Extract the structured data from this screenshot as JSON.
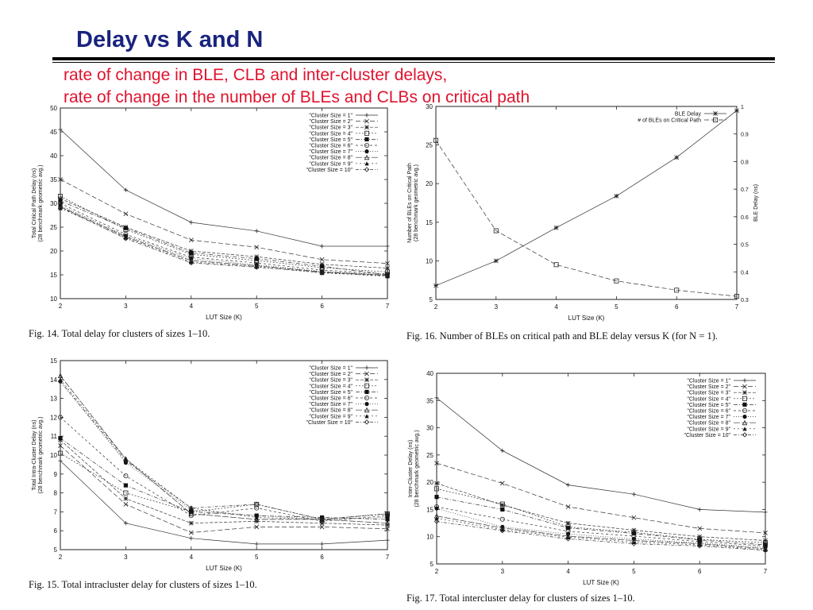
{
  "page": {
    "title": "Delay vs K and N",
    "subtitle_lines": [
      "rate of change in BLE, CLB and inter-cluster delays,",
      "rate of change in the number of BLEs and CLBs on critical path"
    ]
  },
  "chart_data": [
    {
      "id": "fig14",
      "type": "line",
      "caption": "Fig. 14.    Total delay for clusters of sizes 1–10.",
      "xlabel": "LUT Size (K)",
      "ylabel": "Total Critical Path Delay (ns)",
      "ylabel2": "(28 benchmark geometric avg.)",
      "xlim": [
        2,
        7
      ],
      "ylim": [
        10,
        50
      ],
      "xticks": [
        2,
        3,
        4,
        5,
        6,
        7
      ],
      "yticks": [
        10,
        15,
        20,
        25,
        30,
        35,
        40,
        45,
        50
      ],
      "legend_position": "top-right",
      "x": [
        2,
        3,
        4,
        5,
        6,
        7
      ],
      "series": [
        {
          "name": "\"Cluster Size = 1\"",
          "values": [
            45.5,
            32.8,
            26.0,
            24.2,
            21.0,
            21.0
          ]
        },
        {
          "name": "\"Cluster Size = 2\"",
          "values": [
            35.0,
            27.8,
            22.3,
            20.8,
            18.2,
            17.4
          ]
        },
        {
          "name": "\"Cluster Size = 3\"",
          "values": [
            31.0,
            25.0,
            20.0,
            18.8,
            17.2,
            16.4
          ]
        },
        {
          "name": "\"Cluster Size = 4\"",
          "values": [
            31.5,
            24.5,
            19.3,
            18.0,
            16.5,
            15.6
          ]
        },
        {
          "name": "\"Cluster Size = 5\"",
          "values": [
            30.5,
            24.8,
            19.6,
            18.4,
            16.8,
            15.0
          ]
        },
        {
          "name": "\"Cluster Size = 6\"",
          "values": [
            30.0,
            23.5,
            18.7,
            17.5,
            16.0,
            15.2
          ]
        },
        {
          "name": "\"Cluster Size = 7\"",
          "values": [
            29.6,
            23.2,
            18.4,
            17.1,
            15.7,
            15.0
          ]
        },
        {
          "name": "\"Cluster Size = 8\"",
          "values": [
            29.3,
            23.0,
            18.0,
            16.9,
            15.6,
            14.9
          ]
        },
        {
          "name": "\"Cluster Size = 9\"",
          "values": [
            29.0,
            22.8,
            17.7,
            16.7,
            15.4,
            14.7
          ]
        },
        {
          "name": "\"Cluster Size = 10\"",
          "values": [
            29.2,
            22.6,
            17.5,
            16.6,
            15.5,
            14.8
          ]
        }
      ]
    },
    {
      "id": "fig16",
      "type": "line",
      "caption": "Fig. 16.    Number of BLEs on critical path and BLE delay versus K (for N = 1).",
      "xlabel": "LUT Size (K)",
      "ylabel": "Number of BLEs on Critical Path",
      "ylabel2": "(28 benchmark geometric avg.)",
      "ylabel_right": "BLE Delay (ns)",
      "xlim": [
        2,
        7
      ],
      "ylim": [
        5,
        30
      ],
      "ylim_right": [
        0.3,
        1.0
      ],
      "xticks": [
        2,
        3,
        4,
        5,
        6,
        7
      ],
      "yticks": [
        5,
        10,
        15,
        20,
        25,
        30
      ],
      "yticks_right": [
        0.3,
        0.4,
        0.5,
        0.6,
        0.7,
        0.8,
        0.9,
        1.0
      ],
      "legend_position": "top-right",
      "x": [
        2,
        3,
        4,
        5,
        6,
        7
      ],
      "series": [
        {
          "name": "BLE Delay",
          "axis": "right",
          "values": [
            0.35,
            0.44,
            0.56,
            0.675,
            0.815,
            0.985
          ]
        },
        {
          "name": "# of BLEs on Critical Path",
          "axis": "left",
          "values": [
            25.6,
            13.9,
            9.5,
            7.4,
            6.2,
            5.4
          ]
        }
      ]
    },
    {
      "id": "fig15",
      "type": "line",
      "caption": "Fig. 15.    Total intracluster delay for clusters of sizes 1–10.",
      "xlabel": "LUT Size (K)",
      "ylabel": "Total Intra-Cluster Delay (ns)",
      "ylabel2": "(28 benchmark geometric avg.)",
      "xlim": [
        2,
        7
      ],
      "ylim": [
        5,
        15
      ],
      "xticks": [
        2,
        3,
        4,
        5,
        6,
        7
      ],
      "yticks": [
        5,
        6,
        7,
        8,
        9,
        10,
        11,
        12,
        13,
        14,
        15
      ],
      "legend_position": "top-right",
      "x": [
        2,
        3,
        4,
        5,
        6,
        7
      ],
      "series": [
        {
          "name": "\"Cluster Size = 1\"",
          "values": [
            9.7,
            6.4,
            5.6,
            5.3,
            5.3,
            5.5
          ]
        },
        {
          "name": "\"Cluster Size = 2\"",
          "values": [
            10.5,
            7.4,
            5.9,
            6.2,
            6.2,
            6.1
          ]
        },
        {
          "name": "\"Cluster Size = 3\"",
          "values": [
            10.8,
            7.7,
            6.4,
            6.5,
            6.4,
            6.3
          ]
        },
        {
          "name": "\"Cluster Size = 4\"",
          "values": [
            10.1,
            8.0,
            7.0,
            7.4,
            6.6,
            6.9
          ]
        },
        {
          "name": "\"Cluster Size = 5\"",
          "values": [
            10.9,
            8.4,
            7.0,
            6.8,
            6.7,
            6.6
          ]
        },
        {
          "name": "\"Cluster Size = 6\"",
          "values": [
            12.0,
            8.9,
            6.8,
            7.2,
            6.5,
            6.8
          ]
        },
        {
          "name": "\"Cluster Size = 7\"",
          "values": [
            13.9,
            9.6,
            7.1,
            6.8,
            6.6,
            6.7
          ]
        },
        {
          "name": "\"Cluster Size = 8\"",
          "values": [
            14.2,
            9.8,
            6.9,
            6.6,
            6.6,
            6.4
          ]
        },
        {
          "name": "\"Cluster Size = 9\"",
          "values": [
            14.0,
            9.8,
            7.2,
            6.7,
            6.6,
            6.9
          ]
        },
        {
          "name": "\"Cluster Size = 10\"",
          "values": [
            13.9,
            9.7,
            7.2,
            7.4,
            6.6,
            6.9
          ]
        }
      ]
    },
    {
      "id": "fig17",
      "type": "line",
      "caption": "Fig. 17.    Total intercluster delay for clusters of sizes 1–10.",
      "xlabel": "LUT Size (K)",
      "ylabel": "Inter-Cluster Delay (ns)",
      "ylabel2": "(28 benchmark geometric avg.)",
      "xlim": [
        2,
        7
      ],
      "ylim": [
        5,
        40
      ],
      "xticks": [
        2,
        3,
        4,
        5,
        6,
        7
      ],
      "yticks": [
        5,
        10,
        15,
        20,
        25,
        30,
        35,
        40
      ],
      "legend_position": "top-right",
      "x": [
        2,
        3,
        4,
        5,
        6,
        7
      ],
      "series": [
        {
          "name": "\"Cluster Size = 1\"",
          "values": [
            35.5,
            25.8,
            19.5,
            17.8,
            15.0,
            14.5
          ]
        },
        {
          "name": "\"Cluster Size = 2\"",
          "values": [
            23.5,
            19.8,
            15.5,
            13.5,
            11.5,
            10.7
          ]
        },
        {
          "name": "\"Cluster Size = 3\"",
          "values": [
            19.8,
            15.8,
            12.5,
            11.2,
            10.0,
            9.3
          ]
        },
        {
          "name": "\"Cluster Size = 4\"",
          "values": [
            18.8,
            16.0,
            11.8,
            10.8,
            9.5,
            8.9
          ]
        },
        {
          "name": "\"Cluster Size = 5\"",
          "values": [
            17.3,
            15.0,
            11.6,
            10.6,
            9.4,
            8.5
          ]
        },
        {
          "name": "\"Cluster Size = 6\"",
          "values": [
            15.5,
            13.2,
            11.0,
            10.1,
            9.1,
            8.3
          ]
        },
        {
          "name": "\"Cluster Size = 7\"",
          "values": [
            15.2,
            11.8,
            10.5,
            9.6,
            8.8,
            8.0
          ]
        },
        {
          "name": "\"Cluster Size = 8\"",
          "values": [
            13.8,
            11.6,
            10.1,
            9.3,
            8.7,
            7.8
          ]
        },
        {
          "name": "\"Cluster Size = 9\"",
          "values": [
            13.4,
            11.3,
            9.9,
            9.0,
            8.5,
            7.6
          ]
        },
        {
          "name": "\"Cluster Size = 10\"",
          "values": [
            12.8,
            11.1,
            9.6,
            8.7,
            8.3,
            7.5
          ]
        }
      ]
    }
  ]
}
